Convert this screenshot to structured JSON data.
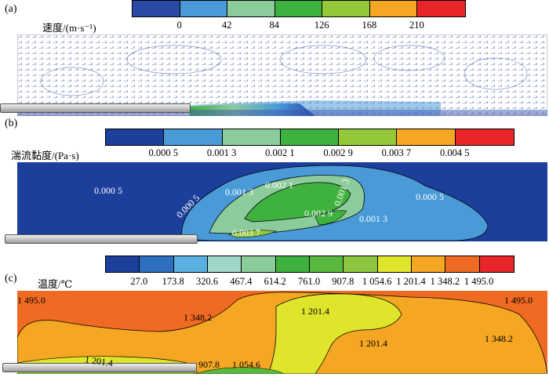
{
  "panels": [
    {
      "label": "(a)",
      "colorbar": {
        "title": "速度/(m·s⁻¹)",
        "colors": [
          "#2b4aa8",
          "#4a9ad8",
          "#8ccc9c",
          "#3fb13f",
          "#94c83a",
          "#f5a623",
          "#e8262a"
        ],
        "ticks": [
          "0",
          "42",
          "84",
          "126",
          "168",
          "210"
        ]
      }
    },
    {
      "label": "(b)",
      "colorbar": {
        "title": "湍流黏度/(Pa·s)",
        "colors": [
          "#1c3f9c",
          "#4a9ad8",
          "#8ccc9c",
          "#3fb13f",
          "#94c83a",
          "#f5a623",
          "#e8262a"
        ],
        "ticks": [
          "0.000 5",
          "0.001 3",
          "0.002 1",
          "0.002 9",
          "0.003 7",
          "0.004 5"
        ]
      },
      "contour_labels": [
        "0.000 5",
        "0.000 5",
        "0.001 3",
        "0.002 1",
        "0.001 3",
        "0.000 5",
        "0.002 9",
        "0.001 3",
        "0.003 7"
      ]
    },
    {
      "label": "(c)",
      "colorbar": {
        "title": "温度/℃",
        "colors": [
          "#1c3f9c",
          "#2f6fc0",
          "#5ab0e0",
          "#9fd6c8",
          "#8ccc9c",
          "#3fb13f",
          "#59b83e",
          "#8cc63f",
          "#dfe52a",
          "#f5a623",
          "#ef6a22",
          "#e8262a"
        ],
        "ticks": [
          "27.0",
          "173.8",
          "320.6",
          "467.4",
          "614.2",
          "761.0",
          "907.8",
          "1 054.6",
          "1 201.4",
          "1 348.2",
          "1 495.0"
        ]
      },
      "contour_labels": [
        "1 495.0",
        "1 495.0",
        "1 348.2",
        "1 201.4",
        "1 201.4",
        "1 348.2",
        "1 201.4",
        "907.8",
        "1 054.6"
      ]
    }
  ]
}
